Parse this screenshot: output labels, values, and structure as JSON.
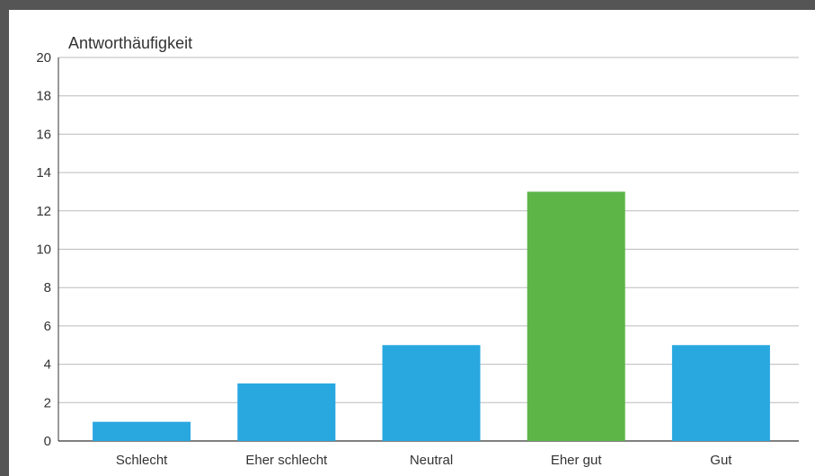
{
  "chart_data": {
    "type": "bar",
    "title": "",
    "xlabel": "",
    "ylabel": "Antworthäufigkeit",
    "categories": [
      "Schlecht",
      "Eher schlecht",
      "Neutral",
      "Eher gut",
      "Gut"
    ],
    "values": [
      1,
      3,
      5,
      13,
      5
    ],
    "bar_colors": [
      "#29a8e0",
      "#29a8e0",
      "#29a8e0",
      "#5db548",
      "#29a8e0"
    ],
    "ylim": [
      0,
      20
    ],
    "yticks": [
      0,
      2,
      4,
      6,
      8,
      10,
      12,
      14,
      16,
      18,
      20
    ],
    "grid": true,
    "legend": "none"
  },
  "colors": {
    "frame": "#555555",
    "grid": "#bbbbbb",
    "axis": "#333333"
  }
}
